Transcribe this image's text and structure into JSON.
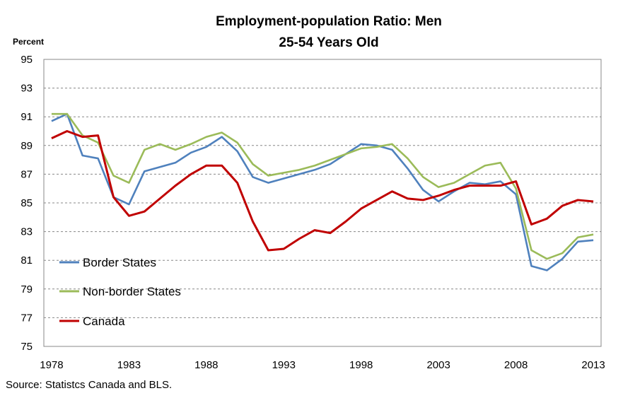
{
  "chart_data": {
    "type": "line",
    "title": "Employment-population Ratio: Men",
    "subtitle": "25-54 Years Old",
    "ylabel": "Percent",
    "xlabel": "",
    "source": "Source: Statistcs Canada and BLS.",
    "ylim": [
      75,
      95
    ],
    "yticks": [
      75,
      77,
      79,
      81,
      83,
      85,
      87,
      89,
      91,
      93,
      95
    ],
    "xlim": [
      1978,
      2013
    ],
    "xticks": [
      1978,
      1983,
      1988,
      1993,
      1998,
      2003,
      2008,
      2013
    ],
    "legend_position": "left",
    "x": [
      1978,
      1979,
      1980,
      1981,
      1982,
      1983,
      1984,
      1985,
      1986,
      1987,
      1988,
      1989,
      1990,
      1991,
      1992,
      1993,
      1994,
      1995,
      1996,
      1997,
      1998,
      1999,
      2000,
      2001,
      2002,
      2003,
      2004,
      2005,
      2006,
      2007,
      2008,
      2009,
      2010,
      2011,
      2012,
      2013
    ],
    "series": [
      {
        "name": "Border States",
        "color": "#4f81bd",
        "values": [
          90.7,
          91.2,
          88.3,
          88.1,
          85.4,
          84.9,
          87.2,
          87.5,
          87.8,
          88.5,
          88.9,
          89.6,
          88.6,
          86.8,
          86.4,
          86.7,
          87.0,
          87.3,
          87.7,
          88.4,
          89.1,
          89.0,
          88.7,
          87.4,
          85.9,
          85.1,
          85.8,
          86.4,
          86.3,
          86.5,
          85.6,
          80.6,
          80.3,
          81.1,
          82.3,
          82.4
        ]
      },
      {
        "name": "Non-border States",
        "color": "#9bbb59",
        "values": [
          91.2,
          91.2,
          89.7,
          89.2,
          86.9,
          86.4,
          88.7,
          89.1,
          88.7,
          89.1,
          89.6,
          89.9,
          89.2,
          87.7,
          86.9,
          87.1,
          87.3,
          87.6,
          88.0,
          88.4,
          88.8,
          88.9,
          89.1,
          88.1,
          86.8,
          86.1,
          86.4,
          87.0,
          87.6,
          87.8,
          86.0,
          81.7,
          81.1,
          81.5,
          82.6,
          82.8
        ]
      },
      {
        "name": "Canada",
        "color": "#c00000",
        "values": [
          89.5,
          90.0,
          89.6,
          89.7,
          85.4,
          84.1,
          84.4,
          85.3,
          86.2,
          87.0,
          87.6,
          87.6,
          86.4,
          83.7,
          81.7,
          81.8,
          82.5,
          83.1,
          82.9,
          83.7,
          84.6,
          85.2,
          85.8,
          85.3,
          85.2,
          85.5,
          85.9,
          86.2,
          86.2,
          86.2,
          86.5,
          83.5,
          83.9,
          84.8,
          85.2,
          85.1
        ]
      }
    ]
  }
}
